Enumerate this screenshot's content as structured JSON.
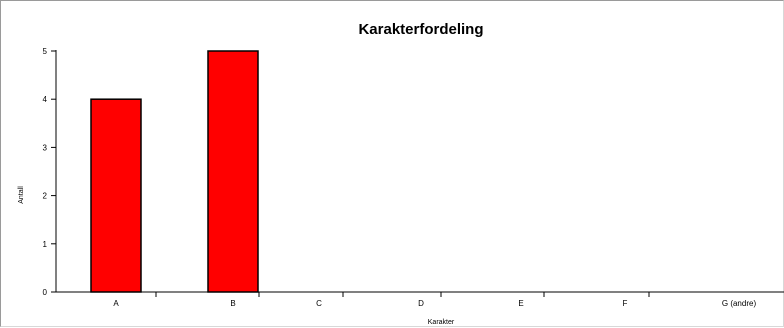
{
  "chart_data": {
    "type": "bar",
    "title": "Karakterfordeling",
    "xlabel": "Karakter",
    "ylabel": "Antall",
    "categories": [
      "A",
      "B",
      "C",
      "D",
      "E",
      "F",
      "G (andre)"
    ],
    "values": [
      4,
      5,
      0,
      0,
      0,
      0,
      0
    ],
    "ylim": [
      0,
      5
    ],
    "yticks": [
      "0",
      "1",
      "2",
      "3",
      "4",
      "5"
    ],
    "bar_color": "#ff0000",
    "bar_border_color": "#000000",
    "grid": false,
    "legend": "none"
  }
}
